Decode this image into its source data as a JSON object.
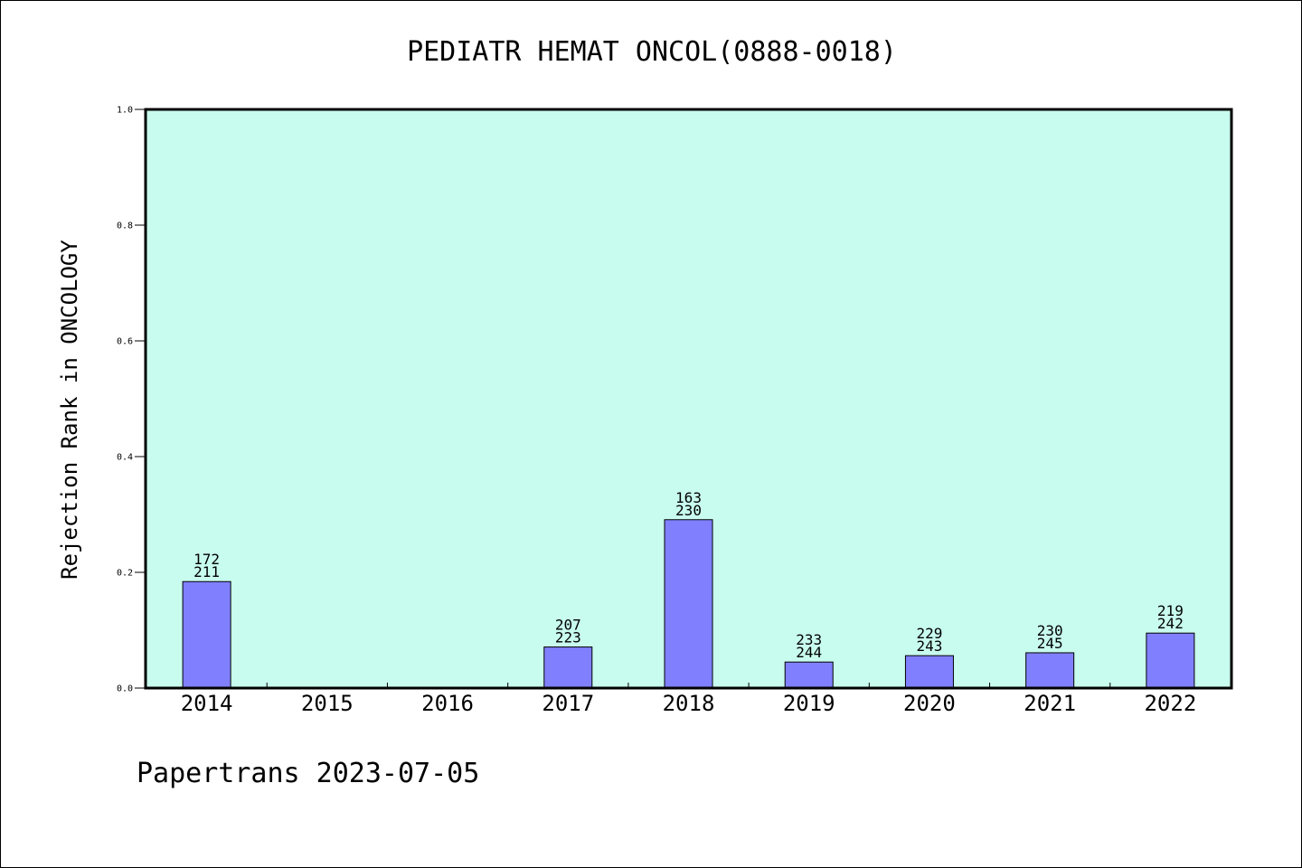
{
  "chart_data": {
    "type": "bar",
    "title": "PEDIATR HEMAT ONCOL(0888-0018)",
    "xlabel": "",
    "ylabel": "Rejection Rank in ONCOLOGY",
    "ylim": [
      0,
      1.0
    ],
    "yticks": [
      "0.0",
      "0.2",
      "0.4",
      "0.6",
      "0.8",
      "1.0"
    ],
    "categories": [
      "2014",
      "2015",
      "2016",
      "2017",
      "2018",
      "2019",
      "2020",
      "2021",
      "2022"
    ],
    "values": [
      0.184,
      null,
      null,
      0.071,
      0.291,
      0.045,
      0.056,
      0.061,
      0.095
    ],
    "label_top": [
      "172",
      "",
      "",
      "207",
      "163",
      "233",
      "229",
      "230",
      "219"
    ],
    "label_bottom": [
      "211",
      "",
      "",
      "223",
      "230",
      "244",
      "243",
      "245",
      "242"
    ],
    "grid": false,
    "legend": "none"
  },
  "footer": "Papertrans 2023-07-05",
  "colors": {
    "plot_background": "#c8fcee",
    "bar_fill": "#8080ff",
    "bar_stroke": "#000000",
    "axis": "#000000"
  }
}
